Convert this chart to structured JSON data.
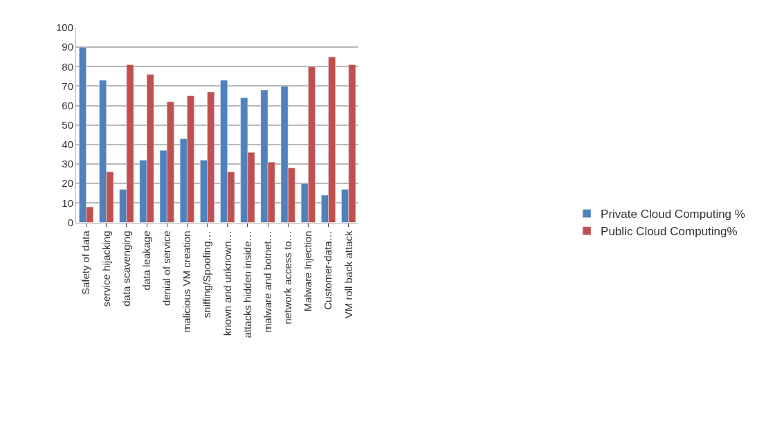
{
  "chart_data": {
    "type": "bar",
    "categories": [
      "Safety of data",
      "service hijacking",
      "data scavenging",
      "data leakage",
      "denial of service",
      "malicious VM creation",
      "sniffing/Spoofing…",
      "known and unknown…",
      "attacks hidden inside…",
      "malware and botnet…",
      "network access to…",
      "Malware Injection",
      "Customer-data…",
      "VM roll back attack"
    ],
    "series": [
      {
        "name": "Private Cloud Computing %",
        "color": "#4f81bd",
        "values": [
          90,
          73,
          17,
          32,
          37,
          43,
          32,
          73,
          64,
          68,
          70,
          20,
          14,
          17
        ]
      },
      {
        "name": "Public Cloud Computing%",
        "color": "#c0504d",
        "values": [
          8,
          26,
          81,
          76,
          62,
          65,
          67,
          26,
          36,
          31,
          28,
          80,
          85,
          81
        ]
      }
    ],
    "ylim": [
      0,
      100
    ],
    "yticks": [
      0,
      10,
      20,
      30,
      40,
      50,
      60,
      70,
      80,
      90,
      100
    ],
    "grid": "y",
    "legend": "right"
  }
}
